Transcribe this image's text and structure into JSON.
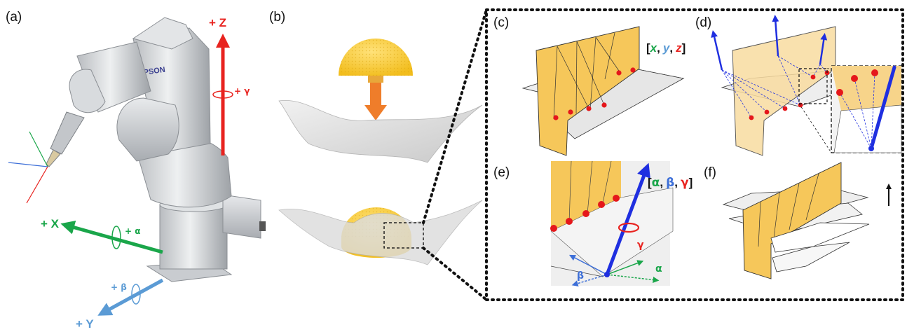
{
  "panels": {
    "a": "(a)",
    "b": "(b)",
    "c": "(c)",
    "d": "(d)",
    "e": "(e)",
    "f": "(f)"
  },
  "robot": {
    "brand": "EPSON",
    "axes": {
      "z": "+ Z",
      "x": "+ X",
      "y": "+ Y",
      "gamma": "+ γ",
      "alpha": "+ α",
      "beta": "+ β"
    }
  },
  "panel_c": {
    "open": "[",
    "x": "x",
    "sep1": ",",
    "y": "y",
    "sep2": ",",
    "z": "z",
    "close": "]"
  },
  "panel_e": {
    "open": "[",
    "alpha": "α",
    "sep1": ",",
    "beta": "β",
    "sep2": ",",
    "gamma": "γ",
    "close": "]",
    "gamma_label": "γ",
    "alpha_label": "α",
    "beta_label": "β"
  },
  "colors": {
    "z_axis": "#e8231f",
    "x_axis": "#1aa64a",
    "y_axis": "#5b9bd5",
    "tool_blue": "#1f2fe0",
    "paper_yellow": "#f6c75a",
    "dome_yellow": "#f7cd3d",
    "press_arrow": "#ef7d2a",
    "point_red": "#e5171b"
  }
}
